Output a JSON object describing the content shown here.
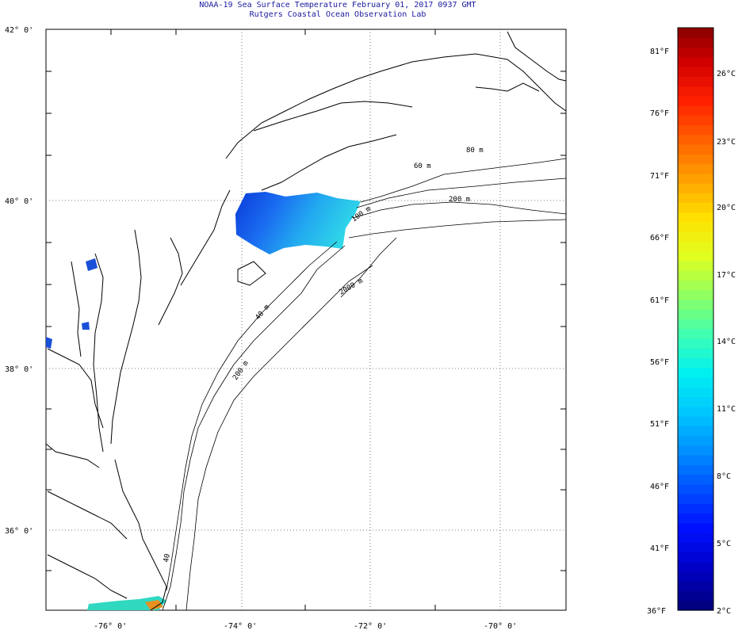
{
  "title": {
    "line1": "NOAA-19 Sea Surface Temperature February 01, 2017 0937 GMT",
    "line2": "Rutgers Coastal Ocean Observation Lab"
  },
  "axes": {
    "lat_labels": [
      "42° 0'",
      "40° 0'",
      "38° 0'",
      "36° 0'"
    ],
    "lon_labels": [
      "-76° 0'",
      "-74° 0'",
      "-72° 0'",
      "-70° 0'"
    ],
    "lat_range": [
      35,
      42
    ],
    "lon_range": [
      -77,
      -69
    ]
  },
  "contours": {
    "labels": [
      "80 m",
      "60 m",
      "200 m",
      "100 m",
      "2000 m",
      "40 m",
      "200 m",
      "40"
    ]
  },
  "colorbar": {
    "f_labels": [
      "81°F",
      "76°F",
      "71°F",
      "66°F",
      "61°F",
      "56°F",
      "51°F",
      "46°F",
      "41°F",
      "36°F"
    ],
    "c_labels": [
      "26°C",
      "23°C",
      "20°C",
      "17°C",
      "14°C",
      "11°C",
      "8°C",
      "5°C",
      "2°C"
    ],
    "range_c": [
      2,
      28
    ],
    "colors": [
      "#000080",
      "#0000c8",
      "#0010ff",
      "#0050ff",
      "#0090ff",
      "#00c8ff",
      "#00f0f0",
      "#40ffb0",
      "#90ff60",
      "#e0ff20",
      "#ffe000",
      "#ffa000",
      "#ff6000",
      "#ff2000",
      "#d00000",
      "#800000"
    ]
  },
  "sst_colors": {
    "cold": "#0a3ad8",
    "cool": "#1a78f0",
    "mid": "#20b0f0",
    "warm": "#30d8e8"
  }
}
